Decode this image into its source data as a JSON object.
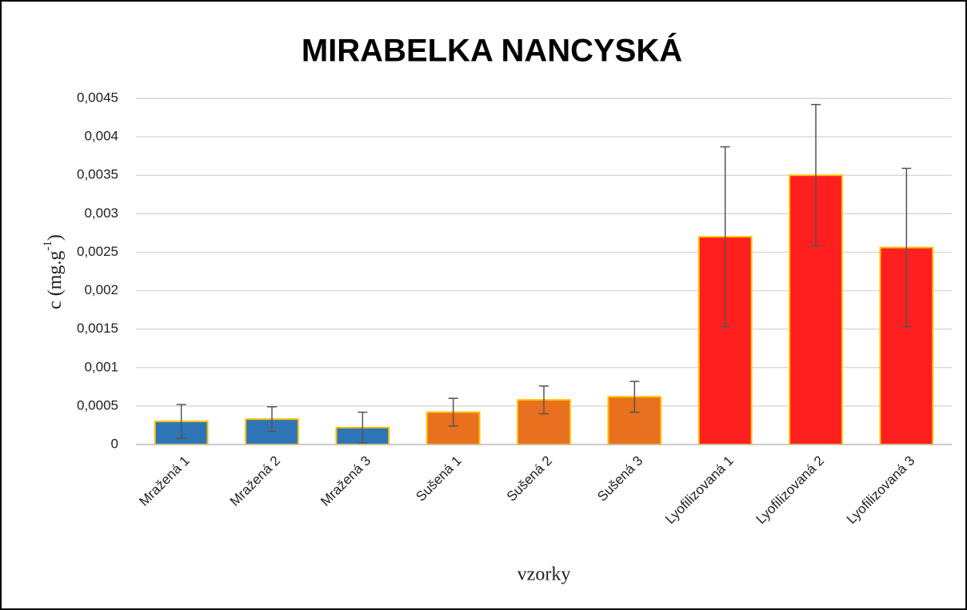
{
  "chart_data": {
    "type": "bar",
    "title": "MIRABELKA NANCYSKÁ",
    "x_label": "vzorky",
    "y_label_parts": [
      "c (mg.g",
      "-1",
      ")"
    ],
    "categories": [
      "Mražená 1",
      "Mražená 2",
      "Mražená 3",
      "Sušená 1",
      "Sušená 2",
      "Sušená 3",
      "Lyofilizovaná 1",
      "Lyofilizovaná 2",
      "Lyofilizovaná 3"
    ],
    "values": [
      0.0003,
      0.00033,
      0.00022,
      0.00042,
      0.00058,
      0.00062,
      0.0027,
      0.0035,
      0.00256
    ],
    "errors": [
      0.00022,
      0.00016,
      0.0002,
      0.00018,
      0.00018,
      0.0002,
      0.00117,
      0.00092,
      0.00103
    ],
    "colors": [
      "#2e75b6",
      "#2e75b6",
      "#2e75b6",
      "#e8701e",
      "#e8701e",
      "#e8701e",
      "#ff1f1f",
      "#ff1f1f",
      "#ff1f1f"
    ],
    "edge_color": "#ffc000",
    "error_color": "#555555",
    "ylim": [
      0,
      0.0045
    ],
    "yticks": [
      {
        "value": 0,
        "label": "0"
      },
      {
        "value": 0.0005,
        "label": "0,0005"
      },
      {
        "value": 0.001,
        "label": "0,001"
      },
      {
        "value": 0.0015,
        "label": "0,0015"
      },
      {
        "value": 0.002,
        "label": "0,002"
      },
      {
        "value": 0.0025,
        "label": "0,0025"
      },
      {
        "value": 0.003,
        "label": "0,003"
      },
      {
        "value": 0.0035,
        "label": "0,0035"
      },
      {
        "value": 0.004,
        "label": "0,004"
      },
      {
        "value": 0.0045,
        "label": "0,0045"
      }
    ],
    "grid": true
  }
}
